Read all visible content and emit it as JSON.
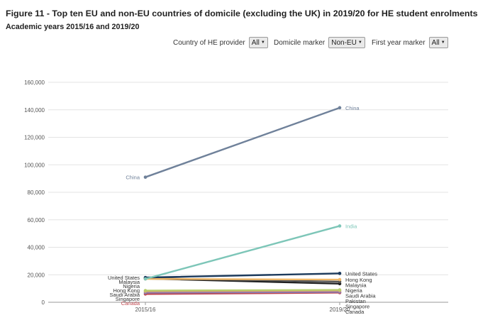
{
  "title": "Figure 11 - Top ten EU and non-EU countries of domicile (excluding the UK) in 2019/20 for HE student enrolments",
  "subtitle": "Academic years 2015/16 and 2019/20",
  "filters": [
    {
      "label": "Country of HE provider",
      "value": "All"
    },
    {
      "label": "Domicile marker",
      "value": "Non-EU"
    },
    {
      "label": "First year marker",
      "value": "All"
    }
  ],
  "chart_data": {
    "type": "line",
    "x": [
      "2015/16",
      "2019/20"
    ],
    "ylim": [
      0,
      160000
    ],
    "yticks": [
      "0",
      "20,000",
      "40,000",
      "60,000",
      "80,000",
      "100,000",
      "120,000",
      "140,000",
      "160,000"
    ],
    "grid": true,
    "series": [
      {
        "name": "China",
        "values": [
          91000,
          141500
        ],
        "color": "#6f819a",
        "show_left": true,
        "show_right": true
      },
      {
        "name": "India",
        "values": [
          17000,
          55500
        ],
        "color": "#7dc6b8",
        "show_left": false,
        "show_right": true
      },
      {
        "name": "United States",
        "values": [
          18000,
          21000
        ],
        "color": "#1c3a5c",
        "show_left": true,
        "show_right": true
      },
      {
        "name": "Hong Kong",
        "values": [
          17000,
          16500
        ],
        "color": "#f0b868",
        "show_left": true,
        "show_right": true
      },
      {
        "name": "Malaysia",
        "values": [
          17500,
          15000
        ],
        "color": "#555555",
        "show_left": true,
        "show_right": true
      },
      {
        "name": "Nigeria",
        "values": [
          17200,
          13500
        ],
        "color": "#222222",
        "show_left": true,
        "show_right": true
      },
      {
        "name": "Saudi Arabia",
        "values": [
          8500,
          9000
        ],
        "color": "#b7cc6a",
        "show_left": true,
        "show_right": true
      },
      {
        "name": "Pakistan",
        "values": [
          8000,
          8500
        ],
        "color": "#e0a070",
        "show_left": false,
        "show_right": true
      },
      {
        "name": "Singapore",
        "values": [
          7000,
          7500
        ],
        "color": "#8a7ab0",
        "show_left": true,
        "show_right": true
      },
      {
        "name": "Canada",
        "values": [
          6000,
          7000
        ],
        "color": "#c0474e",
        "show_left": true,
        "show_right": true
      }
    ]
  }
}
